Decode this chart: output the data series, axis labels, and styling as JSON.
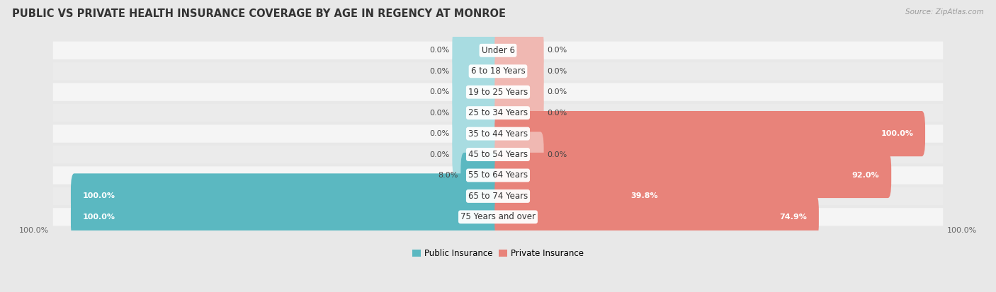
{
  "title": "PUBLIC VS PRIVATE HEALTH INSURANCE COVERAGE BY AGE IN REGENCY AT MONROE",
  "source": "Source: ZipAtlas.com",
  "categories": [
    "Under 6",
    "6 to 18 Years",
    "19 to 25 Years",
    "25 to 34 Years",
    "35 to 44 Years",
    "45 to 54 Years",
    "55 to 64 Years",
    "65 to 74 Years",
    "75 Years and over"
  ],
  "public_values": [
    0.0,
    0.0,
    0.0,
    0.0,
    0.0,
    0.0,
    8.0,
    100.0,
    100.0
  ],
  "private_values": [
    0.0,
    0.0,
    0.0,
    0.0,
    100.0,
    0.0,
    92.0,
    39.8,
    74.9
  ],
  "public_color": "#5BB8C1",
  "private_color": "#E8837A",
  "public_label": "Public Insurance",
  "private_label": "Private Insurance",
  "bg_color": "#e8e8e8",
  "row_colors": [
    "#f5f5f5",
    "#ebebeb"
  ],
  "xlim_left": -100,
  "xlim_right": 100,
  "min_bar_display": 10,
  "axis_label_left": "100.0%",
  "axis_label_right": "100.0%",
  "title_fontsize": 10.5,
  "source_fontsize": 7.5,
  "value_fontsize": 8,
  "category_fontsize": 8.5,
  "value_color_dark": "#444444",
  "value_color_white": "#ffffff"
}
